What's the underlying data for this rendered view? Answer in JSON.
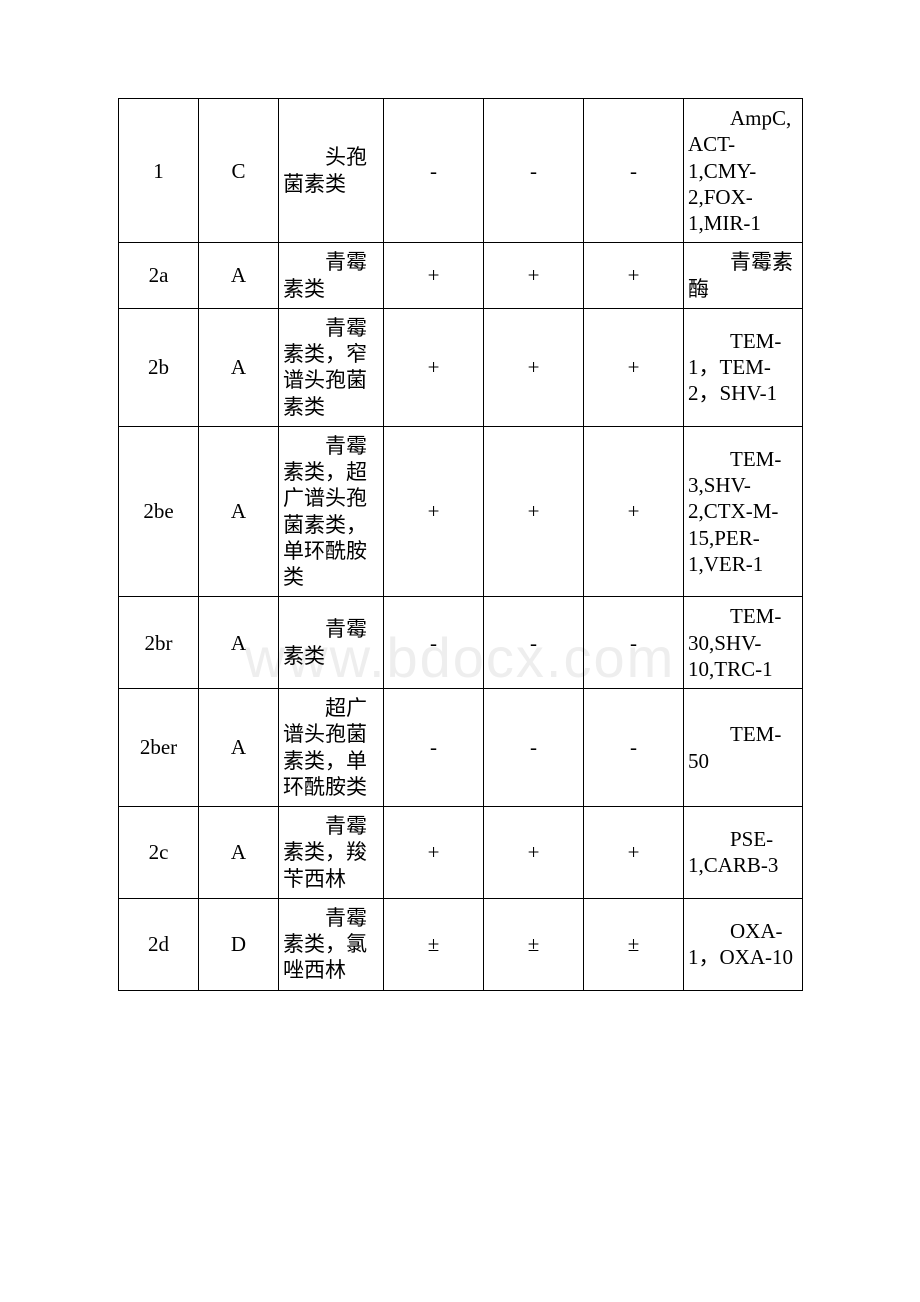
{
  "watermark": "www.bdocx.com",
  "table": {
    "rows": [
      {
        "col0": "1",
        "col1": "C",
        "col2": "头孢菌素类",
        "col3": "-",
        "col4": "-",
        "col5": "-",
        "col6": "AmpC,ACT-1,CMY-2,FOX-1,MIR-1"
      },
      {
        "col0": "2a",
        "col1": "A",
        "col2": "青霉素类",
        "col3": "+",
        "col4": "+",
        "col5": "+",
        "col6": "青霉素酶"
      },
      {
        "col0": "2b",
        "col1": "A",
        "col2": "青霉素类，窄谱头孢菌素类",
        "col3": "+",
        "col4": "+",
        "col5": "+",
        "col6": "TEM-1，TEM-2，SHV-1"
      },
      {
        "col0": "2be",
        "col1": "A",
        "col2": "青霉素类，超广谱头孢菌素类，单环酰胺类",
        "col3": "+",
        "col4": "+",
        "col5": "+",
        "col6": "TEM-3,SHV-2,CTX-M-15,PER-1,VER-1"
      },
      {
        "col0": "2br",
        "col1": "A",
        "col2": "青霉素类",
        "col3": "-",
        "col4": "-",
        "col5": "-",
        "col6": "TEM-30,SHV-10,TRC-1"
      },
      {
        "col0": "2ber",
        "col1": "A",
        "col2": "超广谱头孢菌素类，单环酰胺类",
        "col3": "-",
        "col4": "-",
        "col5": "-",
        "col6": "TEM-50"
      },
      {
        "col0": "2c",
        "col1": "A",
        "col2": "青霉素类，羧苄西林",
        "col3": "+",
        "col4": "+",
        "col5": "+",
        "col6": "PSE-1,CARB-3"
      },
      {
        "col0": "2d",
        "col1": "D",
        "col2": "青霉素类，氯唑西林",
        "col3": "±",
        "col4": "±",
        "col5": "±",
        "col6": "OXA-1，OXA-10"
      }
    ]
  }
}
